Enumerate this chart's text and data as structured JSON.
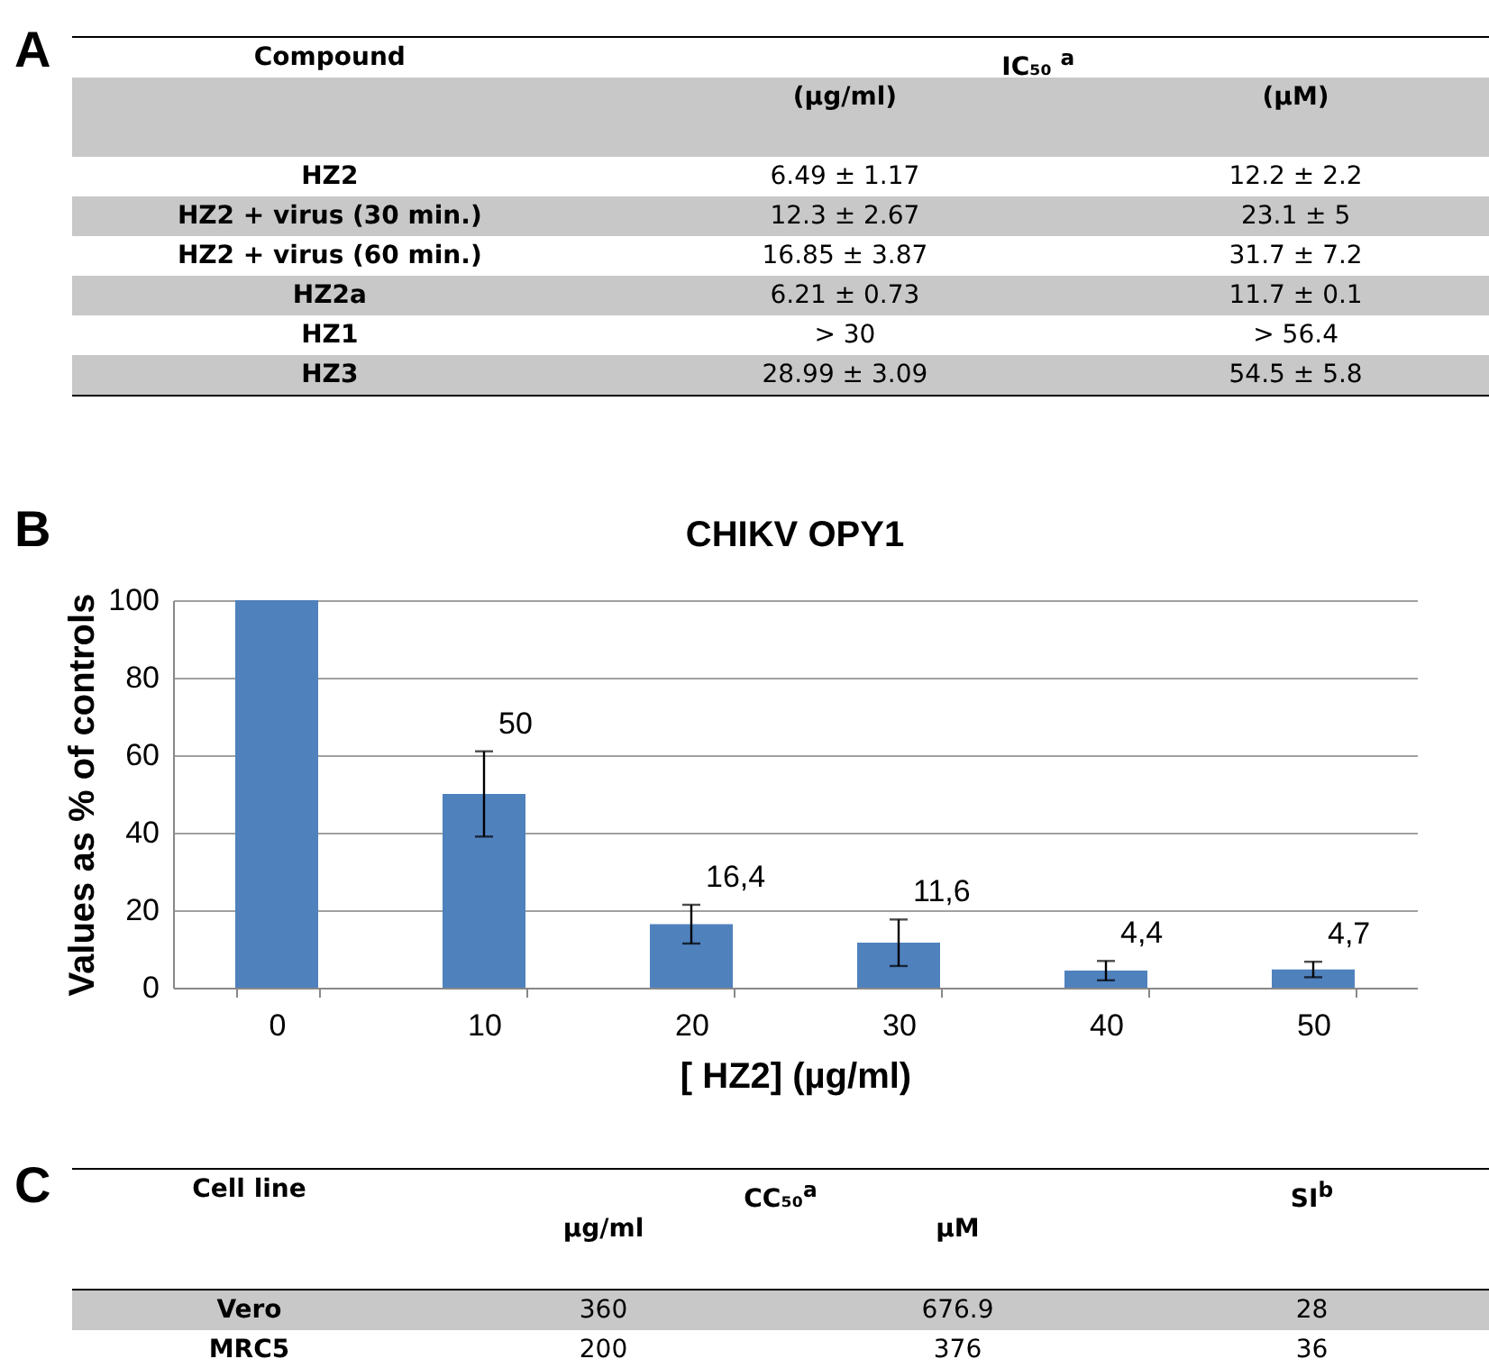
{
  "chart_data": [
    {
      "type": "other",
      "annotations": [
        "A",
        "Compound",
        "IC₅₀ $^{a}$",
        "(µg/ml)",
        "(µM)",
        "HZ2",
        "6.49 ± 1.17",
        "12.2 ± 2.2",
        "HZ2 + virus (30 min.)",
        "12.3 ± 2.67",
        "23.1 ± 5",
        "HZ2 + virus (60 min.)",
        "16.85 ± 3.87",
        "31.7 ± 7.2",
        "HZ2a",
        "6.21 ± 0.73",
        "11.7 ± 0.1",
        "HZ1",
        "> 30",
        "> 56.4",
        "HZ3",
        "28.99 ± 3.09",
        "54.5 ± 5.8"
      ]
    },
    {
      "type": "bar",
      "title": "CHIKV OPY1",
      "annotations": [
        "B"
      ],
      "xlabel": "[ HZ2] (µg/ml)",
      "ylabel": "Values as % of controls",
      "categories": [
        "0",
        "10",
        "20",
        "30",
        "40",
        "50"
      ],
      "values": [
        100,
        50,
        16.4,
        11.6,
        4.4,
        4.7
      ],
      "errors": [
        null,
        11,
        5,
        6,
        2.5,
        2
      ],
      "value_labels": [
        null,
        "50",
        "16,4",
        "11,6",
        "4,4",
        "4,7"
      ],
      "color": "#4f81bd",
      "ylim": [
        0,
        100
      ],
      "yticks": [
        0,
        20,
        40,
        60,
        80,
        100
      ],
      "grid": "y"
    },
    {
      "type": "other",
      "annotations": [
        "C",
        "Cell line",
        "CC₅₀$^{a}$",
        "SI$^{b}$",
        "µg/ml",
        "µM",
        "Vero",
        "360",
        "676.9",
        "28",
        "MRC5",
        "200",
        "376",
        "36"
      ]
    }
  ]
}
